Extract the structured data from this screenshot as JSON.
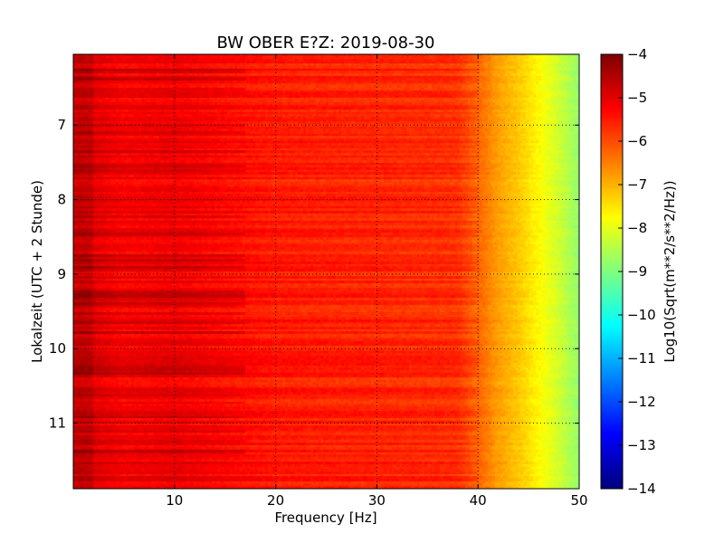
{
  "chart_data": {
    "type": "heatmap",
    "title": "BW OBER E?Z: 2019-08-30",
    "xlabel": "Frequency [Hz]",
    "ylabel": "Lokalzeit (UTC + 2 Stunde)",
    "xlim": [
      0,
      50
    ],
    "ylim": [
      11.88,
      6.05
    ],
    "x_ticks": [
      10,
      20,
      30,
      40,
      50
    ],
    "y_ticks": [
      7,
      8,
      9,
      10,
      11
    ],
    "grid": true,
    "colorbar": {
      "label": "Log10(Sqrt(m**2/s**2/Hz))",
      "min": -14,
      "max": -4,
      "ticks": [
        -4,
        -5,
        -6,
        -7,
        -8,
        -9,
        -10,
        -11,
        -12,
        -13,
        -14
      ],
      "colormap": [
        "#00007f",
        "#0000ff",
        "#007fff",
        "#00ffff",
        "#7fff7f",
        "#ffff00",
        "#ff7f00",
        "#ff0000",
        "#7f0000"
      ]
    },
    "profile": {
      "description_frequency_hz": [
        0,
        1,
        5,
        10,
        15,
        20,
        30,
        38,
        40,
        42,
        44,
        46,
        48,
        50
      ],
      "typical_value": [
        -5.0,
        -4.9,
        -5.2,
        -5.1,
        -5.3,
        -5.5,
        -5.6,
        -5.7,
        -6.2,
        -6.8,
        -7.2,
        -7.7,
        -8.2,
        -8.8
      ]
    }
  }
}
